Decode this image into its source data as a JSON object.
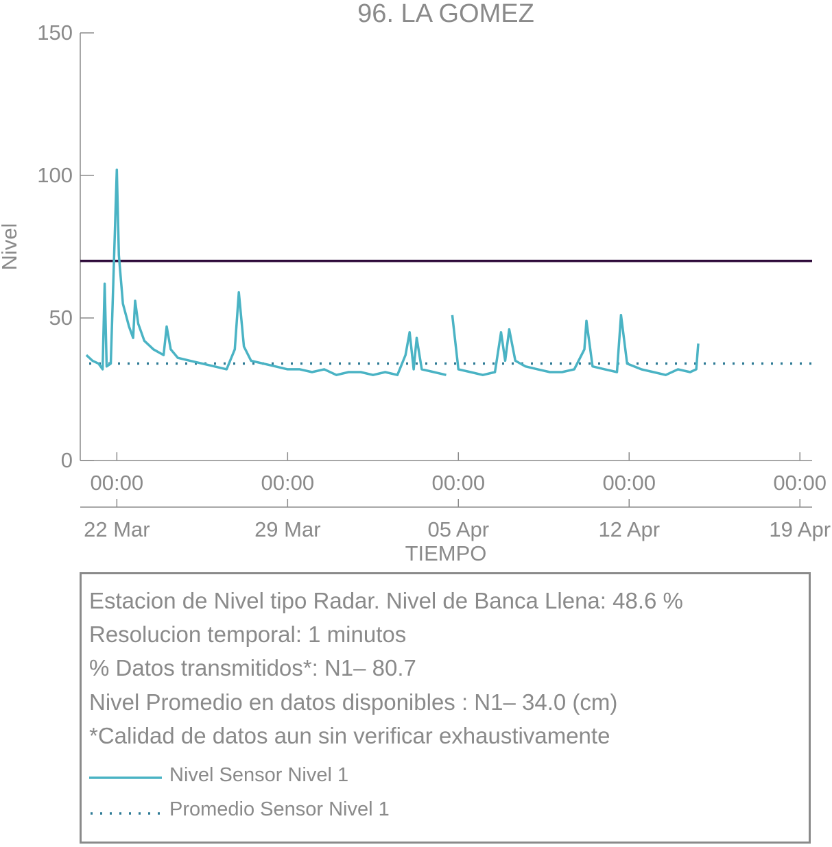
{
  "chart_data": {
    "type": "line",
    "title": "96. LA GOMEZ",
    "ylabel": "Nivel",
    "xlabel": "TIEMPO",
    "ylim": [
      0,
      150
    ],
    "yticks": [
      0,
      50,
      100,
      150
    ],
    "xlim": [
      "2021-03-20T12:00",
      "2021-04-19T12:00"
    ],
    "xticks": [
      {
        "date": "2021-03-22T00:00",
        "time_label": "00:00",
        "date_label": "22 Mar"
      },
      {
        "date": "2021-03-29T00:00",
        "time_label": "00:00",
        "date_label": "29 Mar"
      },
      {
        "date": "2021-04-05T00:00",
        "time_label": "00:00",
        "date_label": "05 Apr"
      },
      {
        "date": "2021-04-12T00:00",
        "time_label": "00:00",
        "date_label": "12 Apr"
      },
      {
        "date": "2021-04-19T00:00",
        "time_label": "00:00",
        "date_label": "19 Apr"
      }
    ],
    "grid": false,
    "threshold_line": {
      "value": 70,
      "color": "#2e0a3a"
    },
    "series": [
      {
        "name": "Nivel Sensor Nivel 1",
        "style": "solid",
        "color": "#4ab3c4",
        "segments": [
          [
            [
              "2021-03-20T18:00",
              37
            ],
            [
              "2021-03-21T00:00",
              35
            ],
            [
              "2021-03-21T06:00",
              34
            ],
            [
              "2021-03-21T10:00",
              32
            ],
            [
              "2021-03-21T12:00",
              62
            ],
            [
              "2021-03-21T14:00",
              33
            ],
            [
              "2021-03-21T18:00",
              34
            ],
            [
              "2021-03-22T00:00",
              102
            ],
            [
              "2021-03-22T02:00",
              72
            ],
            [
              "2021-03-22T06:00",
              55
            ],
            [
              "2021-03-22T12:00",
              47
            ],
            [
              "2021-03-22T16:00",
              43
            ],
            [
              "2021-03-22T18:00",
              56
            ],
            [
              "2021-03-22T21:00",
              48
            ],
            [
              "2021-03-23T03:00",
              42
            ],
            [
              "2021-03-23T12:00",
              39
            ],
            [
              "2021-03-23T22:00",
              37
            ],
            [
              "2021-03-24T01:00",
              47
            ],
            [
              "2021-03-24T05:00",
              39
            ],
            [
              "2021-03-24T12:00",
              36
            ],
            [
              "2021-03-25T00:00",
              35
            ],
            [
              "2021-03-25T12:00",
              34
            ],
            [
              "2021-03-26T00:00",
              33
            ],
            [
              "2021-03-26T12:00",
              32
            ],
            [
              "2021-03-26T20:00",
              39
            ],
            [
              "2021-03-27T00:00",
              59
            ],
            [
              "2021-03-27T05:00",
              40
            ],
            [
              "2021-03-27T12:00",
              35
            ],
            [
              "2021-03-28T00:00",
              34
            ],
            [
              "2021-03-28T12:00",
              33
            ],
            [
              "2021-03-29T00:00",
              32
            ],
            [
              "2021-03-29T12:00",
              32
            ],
            [
              "2021-03-30T00:00",
              31
            ],
            [
              "2021-03-30T12:00",
              32
            ],
            [
              "2021-03-31T00:00",
              30
            ],
            [
              "2021-03-31T12:00",
              31
            ],
            [
              "2021-04-01T00:00",
              31
            ],
            [
              "2021-04-01T12:00",
              30
            ],
            [
              "2021-04-02T00:00",
              31
            ],
            [
              "2021-04-02T12:00",
              30
            ],
            [
              "2021-04-02T20:00",
              37
            ],
            [
              "2021-04-03T00:00",
              45
            ],
            [
              "2021-04-03T04:00",
              32
            ],
            [
              "2021-04-03T07:00",
              43
            ],
            [
              "2021-04-03T12:00",
              32
            ],
            [
              "2021-04-04T00:00",
              31
            ],
            [
              "2021-04-04T12:00",
              30
            ]
          ],
          [
            [
              "2021-04-04T18:00",
              51
            ],
            [
              "2021-04-05T00:00",
              32
            ],
            [
              "2021-04-05T12:00",
              31
            ],
            [
              "2021-04-06T00:00",
              30
            ],
            [
              "2021-04-06T12:00",
              31
            ],
            [
              "2021-04-06T18:00",
              45
            ],
            [
              "2021-04-06T22:00",
              35
            ],
            [
              "2021-04-07T02:00",
              46
            ],
            [
              "2021-04-07T08:00",
              35
            ],
            [
              "2021-04-07T18:00",
              33
            ],
            [
              "2021-04-08T06:00",
              32
            ],
            [
              "2021-04-08T18:00",
              31
            ],
            [
              "2021-04-09T06:00",
              31
            ],
            [
              "2021-04-09T18:00",
              32
            ],
            [
              "2021-04-10T04:00",
              39
            ],
            [
              "2021-04-10T06:00",
              49
            ],
            [
              "2021-04-10T12:00",
              33
            ],
            [
              "2021-04-11T00:00",
              32
            ],
            [
              "2021-04-11T12:00",
              31
            ],
            [
              "2021-04-11T16:00",
              51
            ],
            [
              "2021-04-11T22:00",
              34
            ],
            [
              "2021-04-12T12:00",
              32
            ],
            [
              "2021-04-13T00:00",
              31
            ],
            [
              "2021-04-13T12:00",
              30
            ],
            [
              "2021-04-14T00:00",
              32
            ],
            [
              "2021-04-14T12:00",
              31
            ],
            [
              "2021-04-14T18:00",
              32
            ],
            [
              "2021-04-14T20:00",
              41
            ]
          ]
        ]
      },
      {
        "name": "Promedio Sensor Nivel 1",
        "style": "dotted",
        "color": "#2f7b96",
        "value": 34.0
      }
    ],
    "legend_position": "inside info box, bottom-left"
  },
  "info": {
    "line1": "Estacion de Nivel tipo Radar. Nivel de Banca Llena: 48.6 %",
    "line2": "Resolucion temporal: 1 minutos",
    "line3": "% Datos transmitidos*: N1– 80.7",
    "line4": "Nivel Promedio en datos disponibles : N1– 34.0 (cm)",
    "line5": "*Calidad de datos aun sin verificar exhaustivamente"
  },
  "legend": {
    "item1": "Nivel Sensor Nivel 1",
    "item2": "Promedio Sensor Nivel 1"
  },
  "colors": {
    "text": "#8a8a8a",
    "axis": "#8a8a8a",
    "series": "#4ab3c4",
    "average": "#2f7b96",
    "threshold": "#2e0a3a"
  }
}
